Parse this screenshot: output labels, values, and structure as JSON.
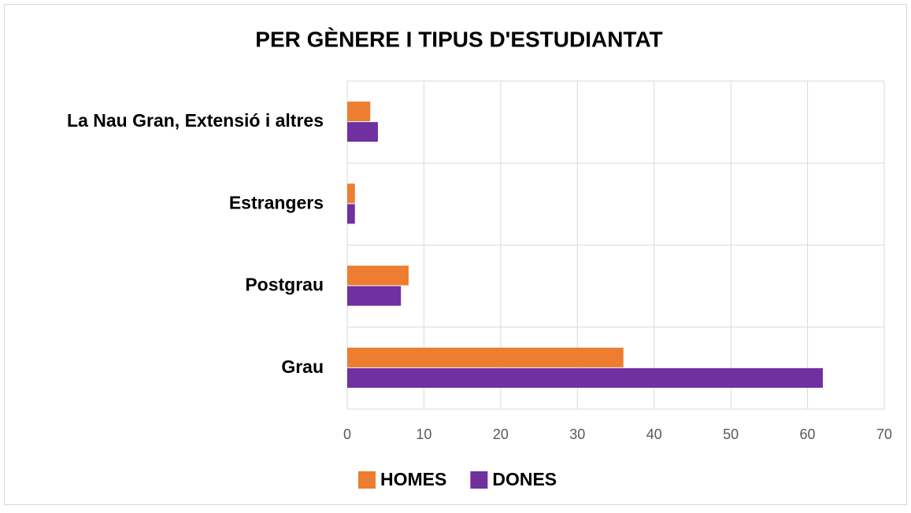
{
  "chart_data": {
    "type": "hbar",
    "title": "PER GÈNERE I TIPUS D'ESTUDIANTAT",
    "categories": [
      "La Nau Gran, Extensió i altres",
      "Estrangers",
      "Postgrau",
      "Grau"
    ],
    "series": [
      {
        "name": "HOMES",
        "color": "#ed7d31",
        "values": [
          3,
          1,
          8,
          36
        ]
      },
      {
        "name": "DONES",
        "color": "#7030a0",
        "values": [
          4,
          1,
          7,
          62
        ]
      }
    ],
    "xlim": [
      0,
      70
    ],
    "xticks": [
      0,
      10,
      20,
      30,
      40,
      50,
      60,
      70
    ],
    "grid": true,
    "legend": "bottom"
  }
}
